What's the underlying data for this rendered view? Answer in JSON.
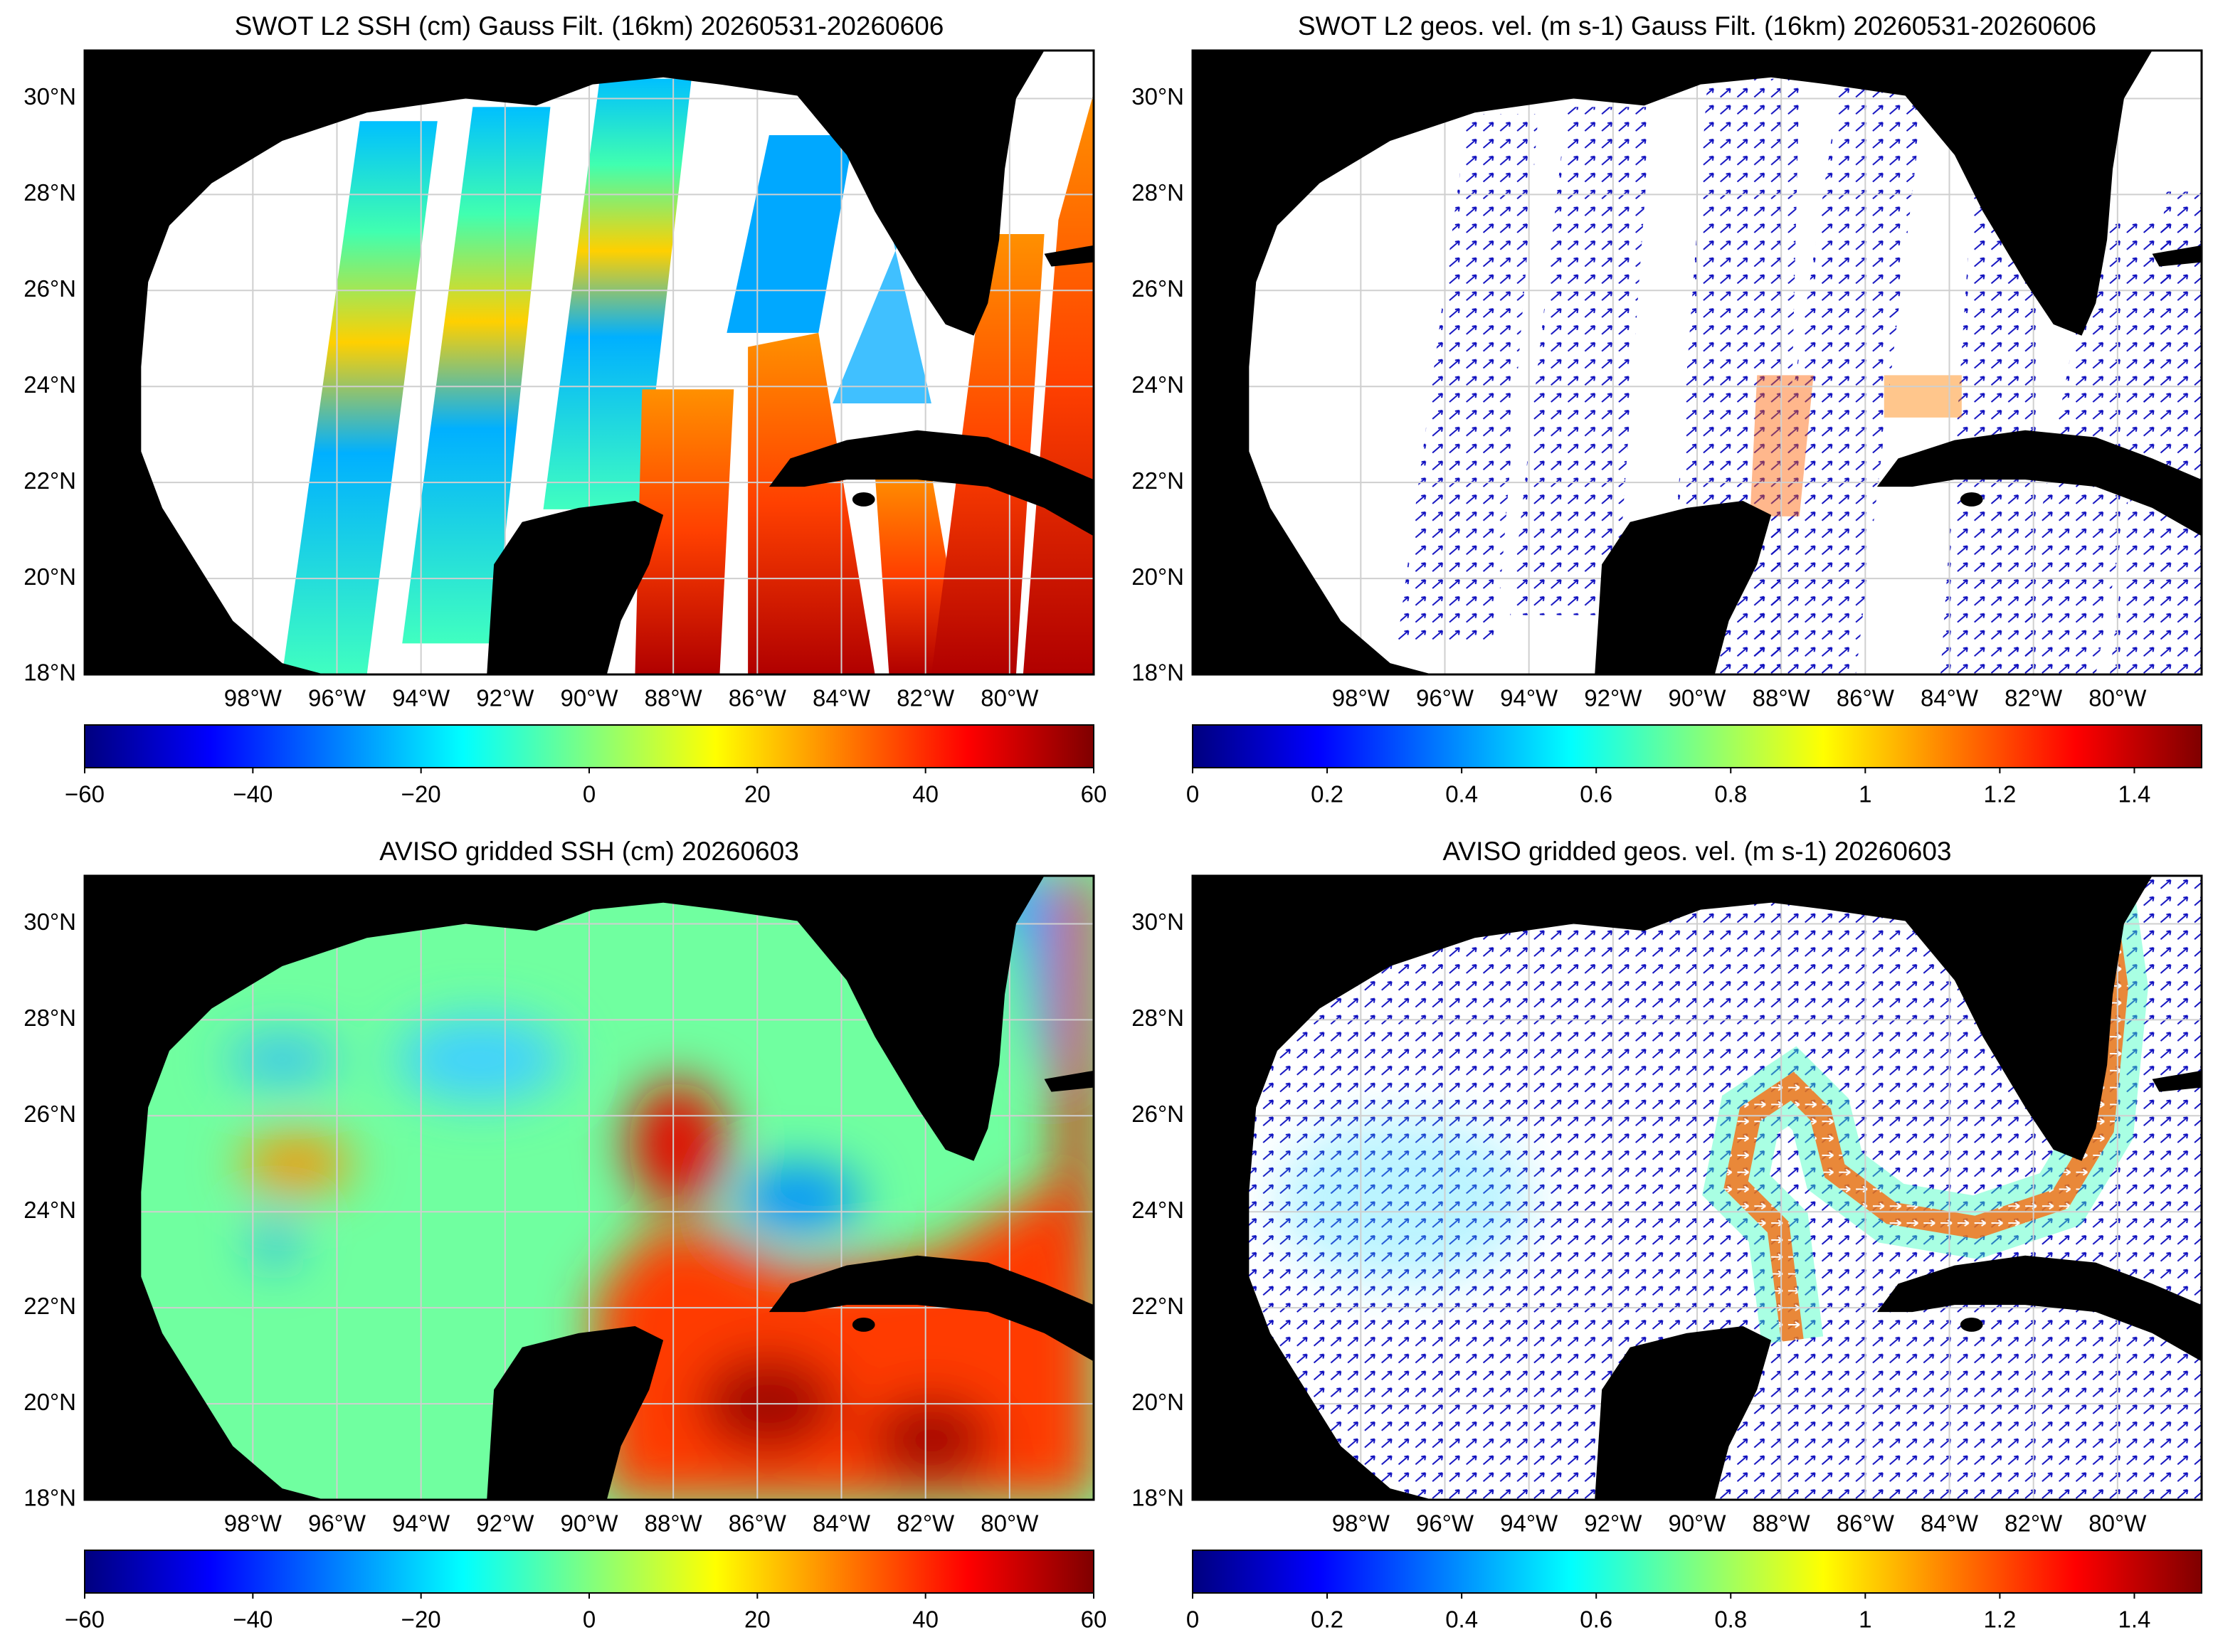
{
  "chart_data": [
    {
      "type": "map",
      "title": "SWOT L2 SSH (cm) Gauss Filt. (16km) 20260531-20260606",
      "xlim": [
        -102,
        -78
      ],
      "ylim": [
        18,
        31
      ],
      "grid": true,
      "xticks": [
        {
          "value": -98,
          "label": "98°W"
        },
        {
          "value": -96,
          "label": "96°W"
        },
        {
          "value": -94,
          "label": "94°W"
        },
        {
          "value": -92,
          "label": "92°W"
        },
        {
          "value": -90,
          "label": "90°W"
        },
        {
          "value": -88,
          "label": "88°W"
        },
        {
          "value": -86,
          "label": "86°W"
        },
        {
          "value": -84,
          "label": "84°W"
        },
        {
          "value": -82,
          "label": "82°W"
        },
        {
          "value": -80,
          "label": "80°W"
        }
      ],
      "yticks": [
        {
          "value": 18,
          "label": "18°N"
        },
        {
          "value": 20,
          "label": "20°N"
        },
        {
          "value": 22,
          "label": "22°N"
        },
        {
          "value": 24,
          "label": "24°N"
        },
        {
          "value": 26,
          "label": "26°N"
        },
        {
          "value": 28,
          "label": "28°N"
        },
        {
          "value": 30,
          "label": "30°N"
        }
      ],
      "colorbar": {
        "colormap": "jet",
        "lim": [
          -60,
          60
        ],
        "ticks": [
          {
            "value": -60,
            "label": "−60"
          },
          {
            "value": -40,
            "label": "−40"
          },
          {
            "value": -20,
            "label": "−20"
          },
          0,
          20,
          40,
          60
        ]
      }
    },
    {
      "type": "map",
      "title": "SWOT L2 geos. vel. (m s-1) Gauss Filt. (16km) 20260531-20260606",
      "xlim": [
        -102,
        -78
      ],
      "ylim": [
        18,
        31
      ],
      "grid": true,
      "xticks": [
        {
          "value": -98,
          "label": "98°W"
        },
        {
          "value": -96,
          "label": "96°W"
        },
        {
          "value": -94,
          "label": "94°W"
        },
        {
          "value": -92,
          "label": "92°W"
        },
        {
          "value": -90,
          "label": "90°W"
        },
        {
          "value": -88,
          "label": "88°W"
        },
        {
          "value": -86,
          "label": "86°W"
        },
        {
          "value": -84,
          "label": "84°W"
        },
        {
          "value": -82,
          "label": "82°W"
        },
        {
          "value": -80,
          "label": "80°W"
        }
      ],
      "yticks": [
        {
          "value": 18,
          "label": "18°N"
        },
        {
          "value": 20,
          "label": "20°N"
        },
        {
          "value": 22,
          "label": "22°N"
        },
        {
          "value": 24,
          "label": "24°N"
        },
        {
          "value": 26,
          "label": "26°N"
        },
        {
          "value": 28,
          "label": "28°N"
        },
        {
          "value": 30,
          "label": "30°N"
        }
      ],
      "colorbar": {
        "colormap": "jet",
        "lim": [
          0,
          1.5
        ],
        "ticks": [
          0,
          0.2,
          0.4,
          0.6,
          0.8,
          1,
          1.2,
          1.4
        ]
      }
    },
    {
      "type": "map",
      "title": "AVISO gridded SSH (cm) 20260603",
      "xlim": [
        -102,
        -78
      ],
      "ylim": [
        18,
        31
      ],
      "grid": true,
      "xticks": [
        {
          "value": -98,
          "label": "98°W"
        },
        {
          "value": -96,
          "label": "96°W"
        },
        {
          "value": -94,
          "label": "94°W"
        },
        {
          "value": -92,
          "label": "92°W"
        },
        {
          "value": -90,
          "label": "90°W"
        },
        {
          "value": -88,
          "label": "88°W"
        },
        {
          "value": -86,
          "label": "86°W"
        },
        {
          "value": -84,
          "label": "84°W"
        },
        {
          "value": -82,
          "label": "82°W"
        },
        {
          "value": -80,
          "label": "80°W"
        }
      ],
      "yticks": [
        {
          "value": 18,
          "label": "18°N"
        },
        {
          "value": 20,
          "label": "20°N"
        },
        {
          "value": 22,
          "label": "22°N"
        },
        {
          "value": 24,
          "label": "24°N"
        },
        {
          "value": 26,
          "label": "26°N"
        },
        {
          "value": 28,
          "label": "28°N"
        },
        {
          "value": 30,
          "label": "30°N"
        }
      ],
      "colorbar": {
        "colormap": "jet",
        "lim": [
          -60,
          60
        ],
        "ticks": [
          {
            "value": -60,
            "label": "−60"
          },
          {
            "value": -40,
            "label": "−40"
          },
          {
            "value": -20,
            "label": "−20"
          },
          0,
          20,
          40,
          60
        ]
      }
    },
    {
      "type": "map",
      "title": "AVISO gridded geos. vel. (m s-1)  20260603",
      "xlim": [
        -102,
        -78
      ],
      "ylim": [
        18,
        31
      ],
      "grid": true,
      "xticks": [
        {
          "value": -98,
          "label": "98°W"
        },
        {
          "value": -96,
          "label": "96°W"
        },
        {
          "value": -94,
          "label": "94°W"
        },
        {
          "value": -92,
          "label": "92°W"
        },
        {
          "value": -90,
          "label": "90°W"
        },
        {
          "value": -88,
          "label": "88°W"
        },
        {
          "value": -86,
          "label": "86°W"
        },
        {
          "value": -84,
          "label": "84°W"
        },
        {
          "value": -82,
          "label": "82°W"
        },
        {
          "value": -80,
          "label": "80°W"
        }
      ],
      "yticks": [
        {
          "value": 18,
          "label": "18°N"
        },
        {
          "value": 20,
          "label": "20°N"
        },
        {
          "value": 22,
          "label": "22°N"
        },
        {
          "value": 24,
          "label": "24°N"
        },
        {
          "value": 26,
          "label": "26°N"
        },
        {
          "value": 28,
          "label": "28°N"
        },
        {
          "value": 30,
          "label": "30°N"
        }
      ],
      "colorbar": {
        "colormap": "jet",
        "lim": [
          0,
          1.5
        ],
        "ticks": [
          0,
          0.2,
          0.4,
          0.6,
          0.8,
          1,
          1.2,
          1.4
        ]
      }
    }
  ]
}
